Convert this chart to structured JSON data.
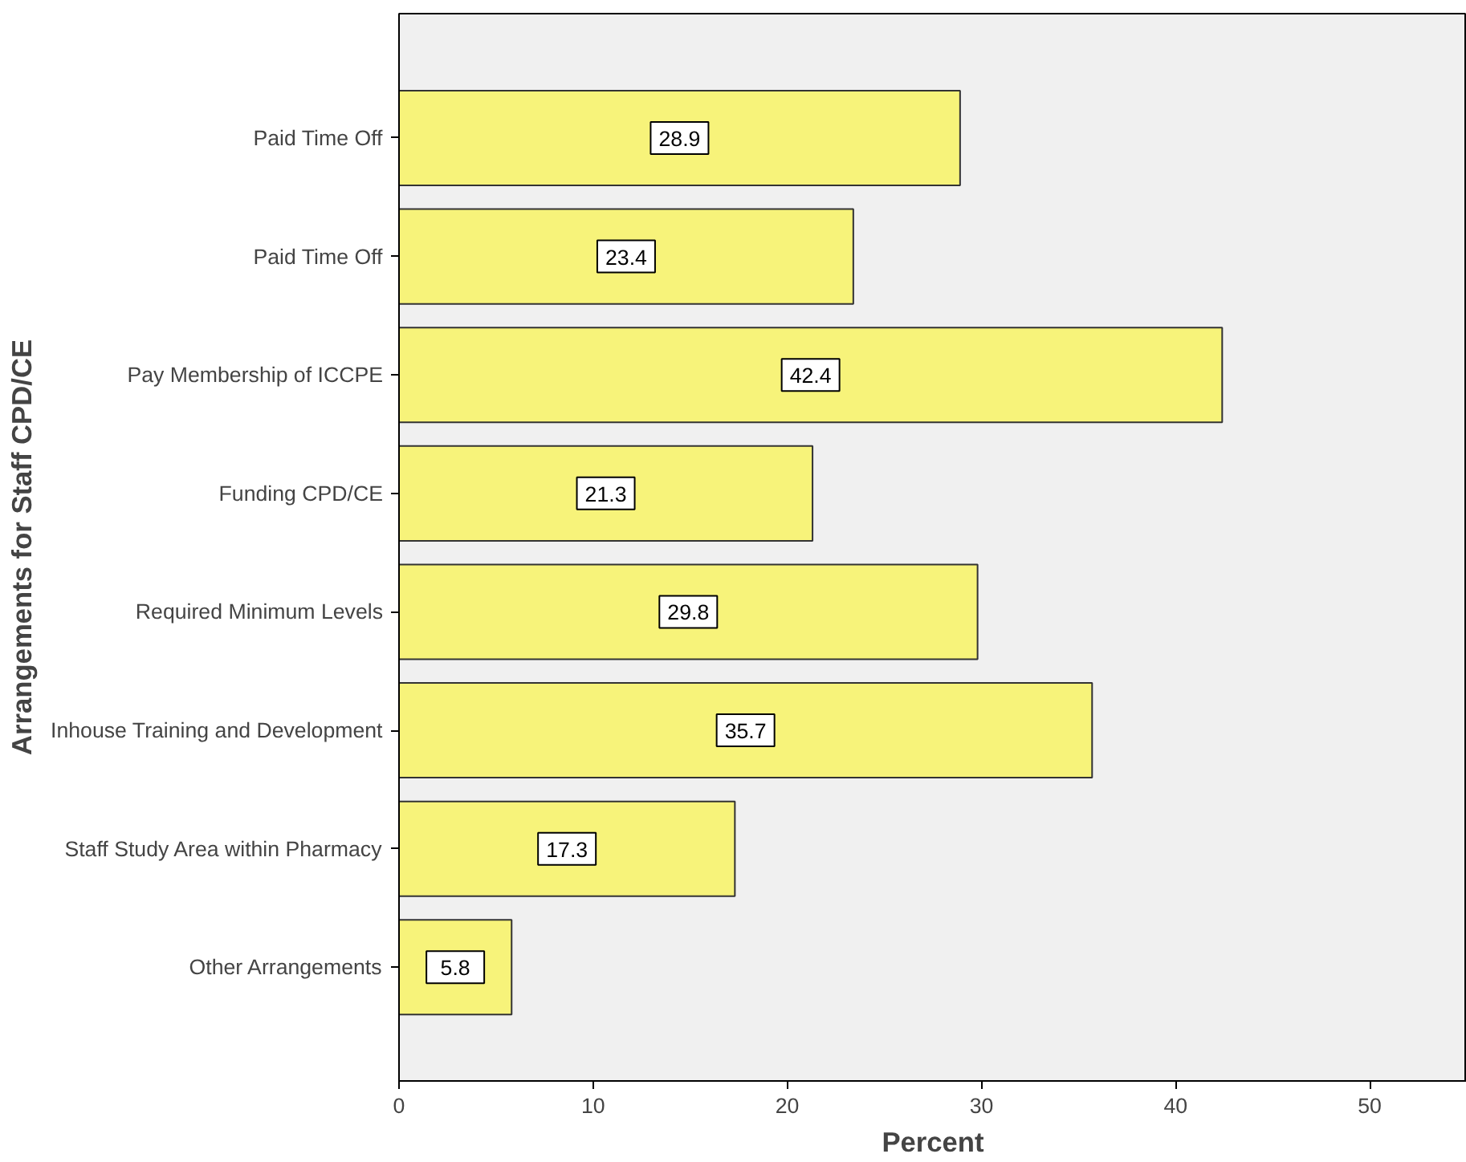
{
  "chart_data": {
    "type": "bar",
    "orientation": "horizontal",
    "xlabel": "Percent",
    "ylabel": "Arrangements for Staff CPD/CE",
    "categories": [
      "Paid Time Off",
      "Paid Time Off",
      "Pay Membership of ICCPE",
      "Funding CPD/CE",
      "Required Minimum Levels",
      "Inhouse Training and Development",
      "Staff Study Area within Pharmacy",
      "Other Arrangements"
    ],
    "values": [
      28.9,
      23.4,
      42.4,
      21.3,
      29.8,
      35.7,
      17.3,
      5.8
    ],
    "color": "#f7f37a",
    "data_labels": true,
    "grid": false,
    "xlim": [
      0,
      55
    ],
    "xticks": [
      0,
      10,
      20,
      30,
      40,
      50
    ]
  }
}
